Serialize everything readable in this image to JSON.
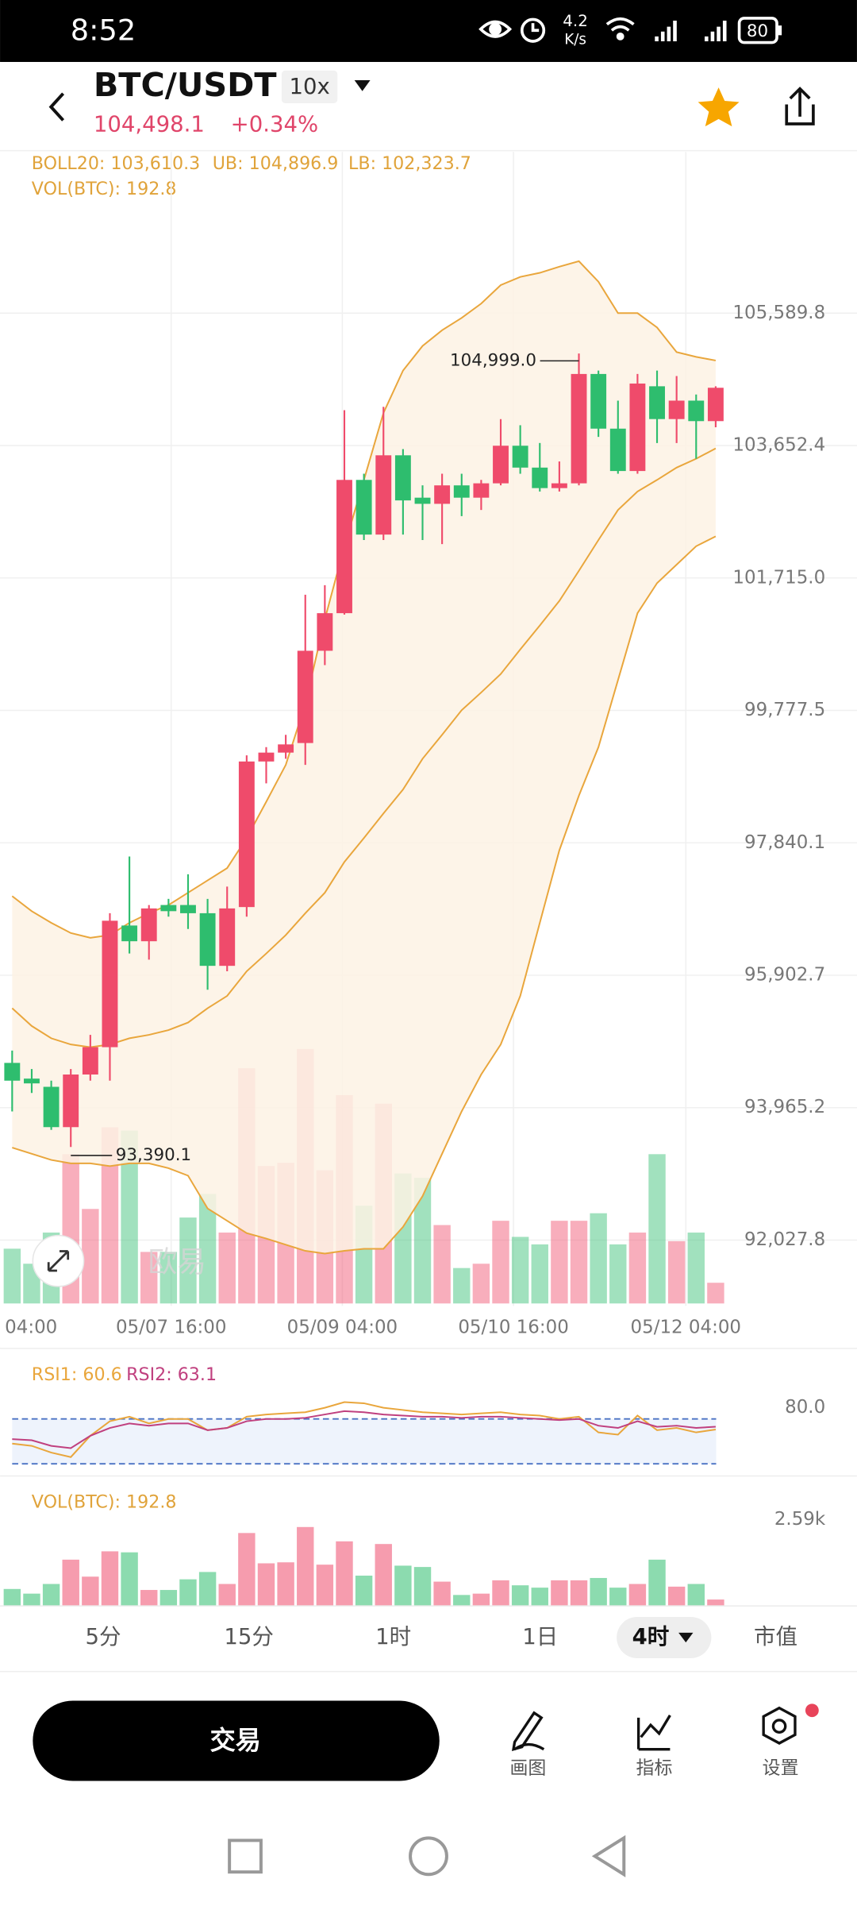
{
  "status_bar": {
    "time": "8:52",
    "speed": "4.2",
    "speed_unit": "K/s",
    "battery": "80"
  },
  "header": {
    "pair": "BTC/USDT",
    "leverage": "10x",
    "price": "104,498.1",
    "change": "+0.34%"
  },
  "indicators": {
    "boll": "BOLL20: 103,610.3",
    "ub": "UB: 104,896.9",
    "lb": "LB: 102,323.7",
    "vol": "VOL(BTC): 192.8"
  },
  "chart_data": [
    {
      "type": "candlestick",
      "x_labels": [
        "04:00",
        "05/07 16:00",
        "05/09 04:00",
        "05/10 16:00",
        "05/12 04:00"
      ],
      "open": [
        94620,
        94390,
        94270,
        93680,
        94450,
        94850,
        96630,
        96400,
        96930,
        96930,
        96810,
        96040,
        96900,
        99030,
        99160,
        99300,
        100650,
        101200,
        103150,
        102350,
        103510,
        102890,
        102800,
        103070,
        102890,
        103100,
        103650,
        103330,
        103030,
        103100,
        104700,
        103900,
        103280,
        104520,
        104040,
        104310,
        104010
      ],
      "high": [
        94800,
        94530,
        94360,
        94530,
        95030,
        96810,
        97640,
        96930,
        97020,
        97380,
        97020,
        97200,
        99120,
        99240,
        99420,
        101470,
        101610,
        104170,
        103240,
        104220,
        103600,
        103070,
        103240,
        103240,
        103150,
        104040,
        103950,
        103690,
        103420,
        104999.0,
        104750,
        104310,
        104700,
        104750,
        104670,
        104400,
        104520
      ],
      "low": [
        93910,
        94180,
        93640,
        93390.1,
        94360,
        94360,
        96220,
        96130,
        96760,
        96580,
        95690,
        95960,
        96760,
        98710,
        99070,
        98980,
        100440,
        101180,
        102270,
        102270,
        102350,
        102270,
        102210,
        102620,
        102710,
        103070,
        103240,
        102980,
        102980,
        103070,
        103780,
        103240,
        103240,
        103690,
        103690,
        103460,
        103920
      ],
      "close": [
        94360,
        94320,
        93680,
        94450,
        94850,
        96700,
        96400,
        96880,
        96840,
        96810,
        96040,
        96880,
        99030,
        99160,
        99280,
        100650,
        101200,
        103150,
        102350,
        103510,
        102850,
        102800,
        103070,
        102890,
        103100,
        103650,
        103330,
        103030,
        103100,
        104700,
        103900,
        103280,
        104560,
        104040,
        104310,
        104010,
        104498.1
      ],
      "volume": [
        510,
        370,
        660,
        1390,
        880,
        1640,
        1610,
        480,
        480,
        800,
        1020,
        660,
        2190,
        1280,
        1310,
        2370,
        1240,
        1940,
        910,
        1860,
        1210,
        1170,
        730,
        330,
        370,
        770,
        620,
        550,
        770,
        770,
        840,
        550,
        660,
        1390,
        580,
        660,
        192.8
      ],
      "bands": {
        "upper": [
          97060,
          96840,
          96670,
          96520,
          96450,
          96490,
          96670,
          96810,
          96930,
          97110,
          97290,
          97470,
          97910,
          98440,
          98980,
          99870,
          101110,
          102180,
          103150,
          104130,
          104750,
          105110,
          105340,
          105520,
          105730,
          106000,
          106120,
          106180,
          106270,
          106350,
          106050,
          105590,
          105590,
          105380,
          105020,
          104950,
          104896.9
        ],
        "middle": [
          95420,
          95160,
          94980,
          94890,
          94850,
          94890,
          94980,
          95030,
          95100,
          95210,
          95420,
          95600,
          95960,
          96220,
          96490,
          96810,
          97110,
          97560,
          97910,
          98270,
          98620,
          99070,
          99420,
          99780,
          100040,
          100310,
          100670,
          101020,
          101380,
          101820,
          102270,
          102710,
          102980,
          103150,
          103330,
          103460,
          103610.3
        ],
        "lower": [
          93380,
          93290,
          93200,
          93150,
          93150,
          93110,
          93150,
          93150,
          93080,
          92970,
          92490,
          92310,
          92130,
          92050,
          91960,
          91870,
          91830,
          91870,
          91900,
          91900,
          92220,
          92670,
          93290,
          93910,
          94450,
          94890,
          95600,
          96670,
          97730,
          98530,
          99240,
          100220,
          101200,
          101640,
          101910,
          102180,
          102323.7
        ]
      },
      "ylim": [
        91100,
        107950
      ],
      "yticks": [
        {
          "value": 105589.8,
          "label": "105,589.8"
        },
        {
          "value": 103652.4,
          "label": "103,652.4"
        },
        {
          "value": 101715.0,
          "label": "101,715.0"
        },
        {
          "value": 99777.5,
          "label": "99,777.5"
        },
        {
          "value": 97840.1,
          "label": "97,840.1"
        },
        {
          "value": 95902.7,
          "label": "95,902.7"
        },
        {
          "value": 93965.2,
          "label": "93,965.2"
        },
        {
          "value": 92027.8,
          "label": "92,027.8"
        }
      ],
      "volume_ylim": [
        0,
        2590
      ],
      "annotations": [
        {
          "label": "104,999.0",
          "value": 104999.0
        },
        {
          "label": "93,390.1",
          "value": 93390.1
        }
      ],
      "colors": {
        "up": "#ef4b6b",
        "down": "#2ebd6e",
        "band": "#e9a63c",
        "band_fill": "#fdf2e4"
      },
      "grid": true
    },
    {
      "type": "line",
      "series": [
        {
          "label": "RSI1: 60.6",
          "color": "#e9a63c",
          "values": [
            48,
            46,
            40,
            36,
            55,
            68,
            72,
            66,
            70,
            70,
            60,
            62,
            72,
            74,
            75,
            76,
            80,
            85,
            84,
            80,
            78,
            76,
            75,
            74,
            75,
            76,
            74,
            73,
            70,
            72,
            58,
            56,
            73,
            60,
            62,
            58,
            60.6
          ]
        },
        {
          "label": "RSI2: 63.1",
          "color": "#c0407f",
          "values": [
            52,
            51,
            46,
            44,
            55,
            62,
            66,
            64,
            66,
            66,
            60,
            62,
            68,
            70,
            70,
            71,
            74,
            77,
            76,
            74,
            73,
            72,
            72,
            71,
            72,
            72,
            71,
            70,
            69,
            70,
            64,
            62,
            68,
            63,
            64,
            62,
            63.1
          ]
        }
      ],
      "ylim": [
        25,
        95
      ],
      "yticks": [
        {
          "value": 80,
          "label": "80.0"
        }
      ],
      "reference_lines": [
        30,
        70
      ]
    },
    {
      "type": "bar",
      "title": "VOL(BTC): 192.8",
      "ylim": [
        0,
        2590
      ],
      "yticks": [
        {
          "value": 2590,
          "label": "2.59k"
        }
      ]
    }
  ],
  "timeframes": [
    "5分",
    "15分",
    "1时",
    "1日",
    "4时",
    "市值"
  ],
  "actions": {
    "trade": "交易",
    "tools": [
      "画图",
      "指标",
      "设置"
    ]
  },
  "watermark": "欧易"
}
